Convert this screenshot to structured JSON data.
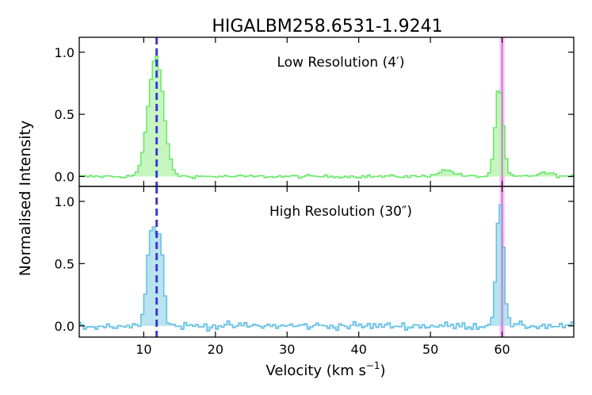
{
  "chart_data": {
    "type": "line",
    "title": "HIGALBM258.6531-1.9241",
    "xlabel": "Velocity (km s",
    "xlabel_sup": "−1",
    "xlabel_end": ")",
    "ylabel": "Normalised Intensity",
    "xlim": [
      1,
      70
    ],
    "x_ticks": [
      10,
      20,
      30,
      40,
      50,
      60
    ],
    "markers": {
      "dashed_line_velocity": 11.8,
      "band_velocity": 60.0,
      "band_halfwidth": 0.35,
      "dashed_color": "#3b3bd9",
      "band_fill": "#f9b8f7",
      "band_line": "#c06bbd"
    },
    "panels": [
      {
        "label": "Low Resolution (4′)",
        "ylim": [
          -0.08,
          1.12
        ],
        "y_ticks": [
          0.0,
          0.5,
          1.0
        ],
        "y_tick_labels": [
          "0.0",
          "0.5",
          "1.0"
        ],
        "line_color": "#6ee86e",
        "fill_color": "#b8f2b0",
        "components": [
          {
            "center": 11.7,
            "amplitude": 0.97,
            "sigma": 1.05
          },
          {
            "center": 52.2,
            "amplitude": 0.05,
            "sigma": 1.2
          },
          {
            "center": 59.6,
            "amplitude": 0.72,
            "sigma": 0.55
          },
          {
            "center": 66.0,
            "amplitude": 0.03,
            "sigma": 1.0
          }
        ],
        "noise": 0.012
      },
      {
        "label": "High Resolution (30″)",
        "ylim": [
          -0.09,
          1.12
        ],
        "y_ticks": [
          0.0,
          0.5,
          1.0
        ],
        "y_tick_labels": [
          "0.0",
          "0.5",
          "1.0"
        ],
        "line_color": "#66c1e6",
        "fill_color": "#a8dced",
        "components": [
          {
            "center": 11.2,
            "amplitude": 0.8,
            "sigma": 0.7
          },
          {
            "center": 12.4,
            "amplitude": 0.5,
            "sigma": 0.45
          },
          {
            "center": 59.7,
            "amplitude": 1.0,
            "sigma": 0.5
          }
        ],
        "noise": 0.03
      }
    ]
  }
}
